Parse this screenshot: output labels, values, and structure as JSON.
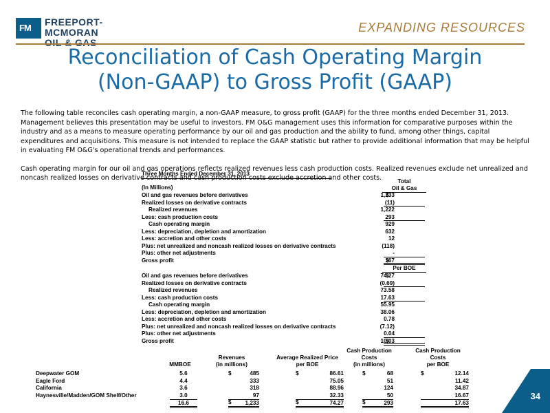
{
  "header": {
    "logo_mark": "FM",
    "logo_line1": "FREEPORT-MCMORAN",
    "logo_line2": "OIL & GAS",
    "tagline": "EXPANDING RESOURCES"
  },
  "title_line1": "Reconciliation of Cash Operating Margin",
  "title_line2": "(Non-GAAP) to Gross Profit (GAAP)",
  "intro": {
    "p1": "The following table reconciles cash operating margin, a non-GAAP measure, to gross profit (GAAP) for the three months ended December 31, 2013.  Management believes this presentation may be useful to investors.  FM O&G management uses this information for comparative purposes within the industry and as a means to measure operating performance by our oil and gas production and the ability to fund, among other things, capital expenditures and acquisitions.  This measure is not intended to replace the GAAP statistic but rather to provide additional information that may be helpful in evaluating FM O&G's operational trends and performances.",
    "p2": "Cash operating margin for our oil and gas operations reflects realized revenues less cash production costs.  Realized revenues exclude net unrealized and noncash realized losses on derivative contracts and cash production costs exclude accretion and other costs."
  },
  "table1": {
    "period": "Three Months Ended December 31, 2013",
    "units": "(In Millions)",
    "col_line1": "Total",
    "col_line2": "Oil & Gas",
    "rows": [
      {
        "label": "Oil and gas revenues before derivatives",
        "dollar": "$",
        "value": "1,233"
      },
      {
        "label": "Realized losses on derivative contracts",
        "dollar": "",
        "value": "(11)"
      },
      {
        "label": "Realized revenues",
        "dollar": "",
        "value": "1,222"
      },
      {
        "label": "Less: cash production costs",
        "dollar": "",
        "value": "293"
      },
      {
        "label": "Cash operating margin",
        "dollar": "",
        "value": "929"
      },
      {
        "label": "Less: depreciation, depletion and amortization",
        "dollar": "",
        "value": "632"
      },
      {
        "label": "Less: accretion and other costs",
        "dollar": "",
        "value": "12"
      },
      {
        "label": "Plus: net unrealized and noncash realized losses on derivative contracts",
        "dollar": "",
        "value": "(118)"
      },
      {
        "label": "Plus: other net adjustments",
        "dollar": "",
        "value": "-"
      },
      {
        "label": "Gross profit",
        "dollar": "$",
        "value": "167"
      }
    ]
  },
  "table2": {
    "col_header": "Per BOE",
    "rows": [
      {
        "label": "Oil and gas revenues before derivatives",
        "dollar": "$",
        "value": "74.27"
      },
      {
        "label": "Realized losses on derivative contracts",
        "dollar": "",
        "value": "(0.69)"
      },
      {
        "label": "Realized revenues",
        "dollar": "",
        "value": "73.58"
      },
      {
        "label": "Less: cash production costs",
        "dollar": "",
        "value": "17.63"
      },
      {
        "label": "Cash operating margin",
        "dollar": "",
        "value": "55.95"
      },
      {
        "label": "Less: depreciation, depletion and amortization",
        "dollar": "",
        "value": "38.06"
      },
      {
        "label": "Less: accretion and other costs",
        "dollar": "",
        "value": "0.78"
      },
      {
        "label": "Plus: net unrealized and noncash realized losses on derivative contracts",
        "dollar": "",
        "value": "(7.12)"
      },
      {
        "label": "Plus: other net adjustments",
        "dollar": "",
        "value": "0.04"
      },
      {
        "label": "Gross profit",
        "dollar": "$",
        "value": "10.03"
      }
    ]
  },
  "table3": {
    "headers": {
      "mmboe": "MMBOE",
      "revenues_l1": "Revenues",
      "revenues_l2": "(in millions)",
      "avg_l1": "Average Realized Price",
      "avg_l2": "per BOE",
      "cpc_l0": "Cash Production",
      "cpc_l1": "Costs",
      "cpc_l2": "(in millions)",
      "cpb_l0": "Cash Production",
      "cpb_l1": "Costs",
      "cpb_l2": "per BOE"
    },
    "rows": [
      {
        "name": "Deepwater GOM",
        "mmboe": "5.6",
        "rev": "485",
        "avg": "86.61",
        "cpc": "68",
        "cpb": "12.14",
        "dollar": true
      },
      {
        "name": "Eagle Ford",
        "mmboe": "4.4",
        "rev": "333",
        "avg": "75.05",
        "cpc": "51",
        "cpb": "11.42",
        "dollar": false
      },
      {
        "name": "California",
        "mmboe": "3.6",
        "rev": "318",
        "avg": "88.96",
        "cpc": "124",
        "cpb": "34.87",
        "dollar": false
      },
      {
        "name": "Haynesville/Madden/GOM Shelf/Other",
        "mmboe": "3.0",
        "rev": "97",
        "avg": "32.33",
        "cpc": "50",
        "cpb": "16.67",
        "dollar": false
      }
    ],
    "total": {
      "mmboe": "16.6",
      "rev": "1,233",
      "avg": "74.27",
      "cpc": "293",
      "cpb": "17.63"
    }
  },
  "page_number": "34"
}
